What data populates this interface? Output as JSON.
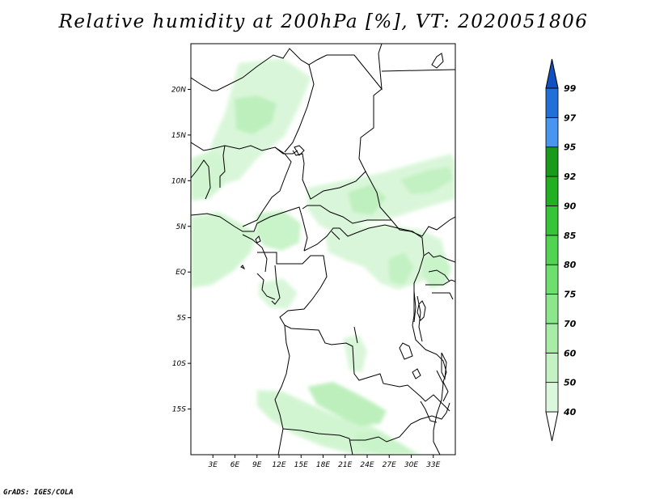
{
  "title": "Relative humidity at 200hPa [%], VT: 2020051806",
  "credit": "GrADS: IGES/COLA",
  "map": {
    "lon_range": [
      0,
      36
    ],
    "lat_range": [
      -20,
      25
    ],
    "lat_ticks": [
      {
        "value": 20,
        "label": "20N"
      },
      {
        "value": 15,
        "label": "15N"
      },
      {
        "value": 10,
        "label": "10N"
      },
      {
        "value": 5,
        "label": "5N"
      },
      {
        "value": 0,
        "label": "EQ"
      },
      {
        "value": -5,
        "label": "5S"
      },
      {
        "value": -10,
        "label": "10S"
      },
      {
        "value": -15,
        "label": "15S"
      }
    ],
    "lon_ticks": [
      {
        "value": 3,
        "label": "3E"
      },
      {
        "value": 6,
        "label": "6E"
      },
      {
        "value": 9,
        "label": "9E"
      },
      {
        "value": 12,
        "label": "12E"
      },
      {
        "value": 15,
        "label": "15E"
      },
      {
        "value": 18,
        "label": "18E"
      },
      {
        "value": 21,
        "label": "21E"
      },
      {
        "value": 24,
        "label": "24E"
      },
      {
        "value": 27,
        "label": "27E"
      },
      {
        "value": 30,
        "label": "30E"
      },
      {
        "value": 33,
        "label": "33E"
      }
    ]
  },
  "colorbar": {
    "levels": [
      "40",
      "50",
      "60",
      "70",
      "75",
      "80",
      "85",
      "90",
      "92",
      "95",
      "97",
      "99"
    ],
    "colors": [
      "#f0fcf0",
      "#dcf8dc",
      "#c4f2c4",
      "#a8eca8",
      "#8ce68c",
      "#6ede6e",
      "#52d452",
      "#38c438",
      "#22b022",
      "#1a9a1a",
      "#4896f0",
      "#2070d8",
      "#1050c0"
    ],
    "lower_triangle_color": "#ffffff",
    "upper_triangle_color": "#1050c0"
  }
}
